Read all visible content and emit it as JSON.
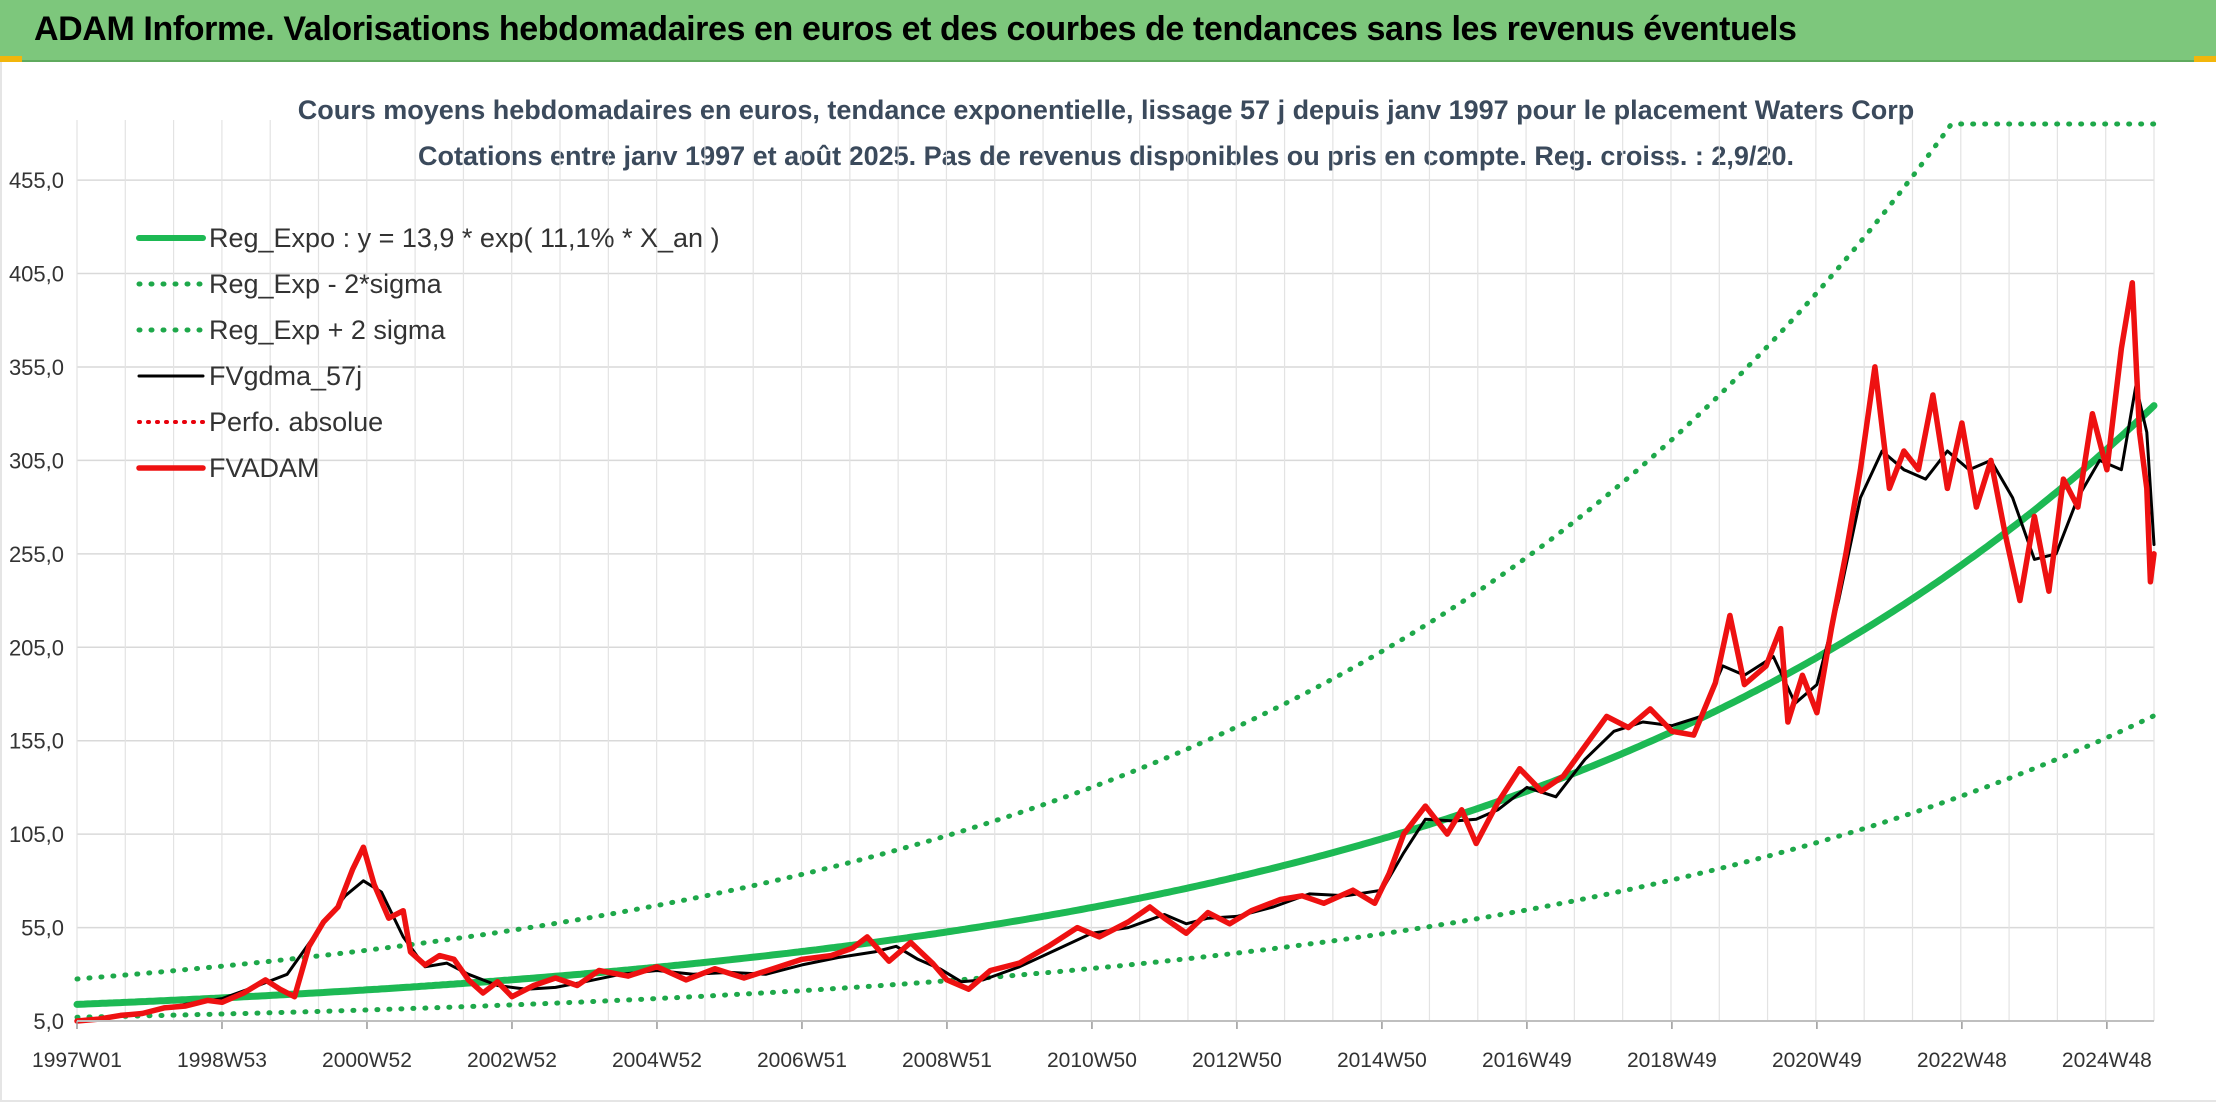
{
  "header": {
    "title": "ADAM Informe. Valorisations hebdomadaires en euros et des courbes de tendances sans les revenus éventuels"
  },
  "colors": {
    "banner": "#7dc77c",
    "reg_expo": "#1db954",
    "sigma": "#1ea84a",
    "fvgdma": "#000000",
    "perfo": "#e8000b",
    "fvadam": "#ee1111",
    "accent": "#f2b60c"
  },
  "chart_data": {
    "type": "line",
    "title": "Cours moyens hebdomadaires en euros, tendance exponentielle, lissage 57 j depuis janv 1997 pour le placement Waters Corp",
    "subtitle": "Cotations entre janv 1997 et août 2025. Pas de revenus disponibles ou pris en compte. Reg. croiss. : 2,9/20.",
    "ylim": [
      5,
      485
    ],
    "y_ticks": [
      "5,0",
      "55,0",
      "105,0",
      "155,0",
      "205,0",
      "255,0",
      "305,0",
      "355,0",
      "405,0",
      "455,0"
    ],
    "y_tick_values": [
      5,
      55,
      105,
      155,
      205,
      255,
      305,
      355,
      405,
      455
    ],
    "x_ticks": [
      "1997W01",
      "1998W53",
      "2000W52",
      "2002W52",
      "2004W52",
      "2006W51",
      "2008W51",
      "2010W50",
      "2012W50",
      "2014W50",
      "2016W49",
      "2018W49",
      "2020W49",
      "2022W48",
      "2024W48"
    ],
    "x_tick_years": [
      1997.0,
      1999.0,
      2001.0,
      2003.0,
      2005.0,
      2007.0,
      2009.0,
      2011.0,
      2013.0,
      2015.0,
      2017.0,
      2019.0,
      2021.0,
      2023.0,
      2025.0
    ],
    "x_range_years": [
      1997.0,
      2025.65
    ],
    "grid": true,
    "legend_position": "top-left",
    "series": [
      {
        "name": "Reg_Expo : y = 13,9 * exp( 11,1% *  X_an )",
        "style": "solid-thick",
        "formula": {
          "a": 13.9,
          "rate": 0.111
        }
      },
      {
        "name": "Reg_Exp - 2*sigma",
        "style": "dotted",
        "formula": {
          "a": 7.0,
          "rate": 0.111
        }
      },
      {
        "name": "Reg_Exp + 2 sigma",
        "style": "dotted",
        "formula": {
          "a": 27.5,
          "rate": 0.111,
          "cap": 485
        }
      },
      {
        "name": "FVgdma_57j",
        "style": "solid",
        "points": [
          [
            1997.0,
            5
          ],
          [
            1997.5,
            7
          ],
          [
            1998.0,
            10
          ],
          [
            1998.5,
            14
          ],
          [
            1999.0,
            17
          ],
          [
            1999.5,
            24
          ],
          [
            1999.9,
            30
          ],
          [
            2000.3,
            52
          ],
          [
            2000.7,
            72
          ],
          [
            2000.95,
            80
          ],
          [
            2001.2,
            74
          ],
          [
            2001.5,
            50
          ],
          [
            2001.8,
            34
          ],
          [
            2002.1,
            36
          ],
          [
            2002.4,
            30
          ],
          [
            2002.8,
            24
          ],
          [
            2003.2,
            22
          ],
          [
            2003.6,
            23
          ],
          [
            2004.0,
            26
          ],
          [
            2004.5,
            30
          ],
          [
            2005.0,
            32
          ],
          [
            2005.5,
            30
          ],
          [
            2006.0,
            31
          ],
          [
            2006.5,
            30
          ],
          [
            2007.0,
            35
          ],
          [
            2007.5,
            39
          ],
          [
            2008.0,
            42
          ],
          [
            2008.3,
            45
          ],
          [
            2008.6,
            38
          ],
          [
            2008.9,
            33
          ],
          [
            2009.2,
            26
          ],
          [
            2009.5,
            27
          ],
          [
            2010.0,
            34
          ],
          [
            2010.5,
            43
          ],
          [
            2011.0,
            52
          ],
          [
            2011.5,
            55
          ],
          [
            2012.0,
            62
          ],
          [
            2012.3,
            57
          ],
          [
            2012.6,
            60
          ],
          [
            2013.0,
            61
          ],
          [
            2013.5,
            66
          ],
          [
            2014.0,
            73
          ],
          [
            2014.5,
            72
          ],
          [
            2015.0,
            75
          ],
          [
            2015.3,
            95
          ],
          [
            2015.6,
            113
          ],
          [
            2016.0,
            112
          ],
          [
            2016.3,
            113
          ],
          [
            2016.6,
            118
          ],
          [
            2017.0,
            130
          ],
          [
            2017.4,
            125
          ],
          [
            2017.8,
            145
          ],
          [
            2018.2,
            160
          ],
          [
            2018.6,
            165
          ],
          [
            2019.0,
            163
          ],
          [
            2019.4,
            168
          ],
          [
            2019.7,
            195
          ],
          [
            2020.0,
            190
          ],
          [
            2020.4,
            200
          ],
          [
            2020.7,
            175
          ],
          [
            2021.0,
            185
          ],
          [
            2021.3,
            230
          ],
          [
            2021.6,
            285
          ],
          [
            2021.9,
            310
          ],
          [
            2022.2,
            300
          ],
          [
            2022.5,
            295
          ],
          [
            2022.8,
            310
          ],
          [
            2023.1,
            300
          ],
          [
            2023.4,
            305
          ],
          [
            2023.7,
            285
          ],
          [
            2024.0,
            252
          ],
          [
            2024.3,
            255
          ],
          [
            2024.6,
            285
          ],
          [
            2024.9,
            305
          ],
          [
            2025.2,
            300
          ],
          [
            2025.4,
            345
          ],
          [
            2025.55,
            320
          ],
          [
            2025.65,
            260
          ]
        ]
      },
      {
        "name": "Perfo. absolue",
        "style": "dotted",
        "points": []
      },
      {
        "name": "FVADAM",
        "style": "solid-thick",
        "points": [
          [
            1997.0,
            5
          ],
          [
            1997.3,
            6
          ],
          [
            1997.6,
            8
          ],
          [
            1997.9,
            9
          ],
          [
            1998.2,
            12
          ],
          [
            1998.5,
            13
          ],
          [
            1998.8,
            16
          ],
          [
            1999.0,
            15
          ],
          [
            1999.3,
            20
          ],
          [
            1999.6,
            27
          ],
          [
            1999.8,
            22
          ],
          [
            2000.0,
            18
          ],
          [
            2000.2,
            45
          ],
          [
            2000.4,
            58
          ],
          [
            2000.6,
            66
          ],
          [
            2000.8,
            86
          ],
          [
            2000.95,
            98
          ],
          [
            2001.1,
            78
          ],
          [
            2001.3,
            60
          ],
          [
            2001.5,
            64
          ],
          [
            2001.6,
            42
          ],
          [
            2001.8,
            35
          ],
          [
            2002.0,
            40
          ],
          [
            2002.2,
            38
          ],
          [
            2002.4,
            27
          ],
          [
            2002.6,
            20
          ],
          [
            2002.8,
            26
          ],
          [
            2003.0,
            18
          ],
          [
            2003.3,
            24
          ],
          [
            2003.6,
            28
          ],
          [
            2003.9,
            24
          ],
          [
            2004.2,
            32
          ],
          [
            2004.6,
            29
          ],
          [
            2005.0,
            34
          ],
          [
            2005.4,
            27
          ],
          [
            2005.8,
            33
          ],
          [
            2006.2,
            28
          ],
          [
            2006.6,
            33
          ],
          [
            2007.0,
            38
          ],
          [
            2007.4,
            40
          ],
          [
            2007.7,
            44
          ],
          [
            2007.9,
            50
          ],
          [
            2008.2,
            37
          ],
          [
            2008.5,
            47
          ],
          [
            2008.8,
            36
          ],
          [
            2009.0,
            27
          ],
          [
            2009.3,
            22
          ],
          [
            2009.6,
            32
          ],
          [
            2010.0,
            36
          ],
          [
            2010.4,
            45
          ],
          [
            2010.8,
            55
          ],
          [
            2011.1,
            50
          ],
          [
            2011.5,
            58
          ],
          [
            2011.8,
            66
          ],
          [
            2012.0,
            60
          ],
          [
            2012.3,
            52
          ],
          [
            2012.6,
            63
          ],
          [
            2012.9,
            57
          ],
          [
            2013.2,
            64
          ],
          [
            2013.6,
            70
          ],
          [
            2013.9,
            72
          ],
          [
            2014.2,
            68
          ],
          [
            2014.6,
            75
          ],
          [
            2014.9,
            68
          ],
          [
            2015.1,
            84
          ],
          [
            2015.3,
            105
          ],
          [
            2015.6,
            120
          ],
          [
            2015.9,
            105
          ],
          [
            2016.1,
            118
          ],
          [
            2016.3,
            100
          ],
          [
            2016.6,
            122
          ],
          [
            2016.9,
            140
          ],
          [
            2017.2,
            128
          ],
          [
            2017.5,
            136
          ],
          [
            2017.8,
            152
          ],
          [
            2018.1,
            168
          ],
          [
            2018.4,
            162
          ],
          [
            2018.7,
            172
          ],
          [
            2019.0,
            160
          ],
          [
            2019.3,
            158
          ],
          [
            2019.6,
            186
          ],
          [
            2019.8,
            222
          ],
          [
            2020.0,
            185
          ],
          [
            2020.3,
            195
          ],
          [
            2020.5,
            215
          ],
          [
            2020.6,
            165
          ],
          [
            2020.8,
            190
          ],
          [
            2021.0,
            170
          ],
          [
            2021.2,
            215
          ],
          [
            2021.4,
            255
          ],
          [
            2021.6,
            300
          ],
          [
            2021.8,
            355
          ],
          [
            2022.0,
            290
          ],
          [
            2022.2,
            310
          ],
          [
            2022.4,
            300
          ],
          [
            2022.6,
            340
          ],
          [
            2022.8,
            290
          ],
          [
            2023.0,
            325
          ],
          [
            2023.2,
            280
          ],
          [
            2023.4,
            305
          ],
          [
            2023.6,
            265
          ],
          [
            2023.8,
            230
          ],
          [
            2024.0,
            275
          ],
          [
            2024.2,
            235
          ],
          [
            2024.4,
            295
          ],
          [
            2024.6,
            280
          ],
          [
            2024.8,
            330
          ],
          [
            2025.0,
            300
          ],
          [
            2025.2,
            365
          ],
          [
            2025.35,
            400
          ],
          [
            2025.45,
            320
          ],
          [
            2025.55,
            290
          ],
          [
            2025.6,
            240
          ],
          [
            2025.65,
            255
          ]
        ]
      }
    ]
  }
}
